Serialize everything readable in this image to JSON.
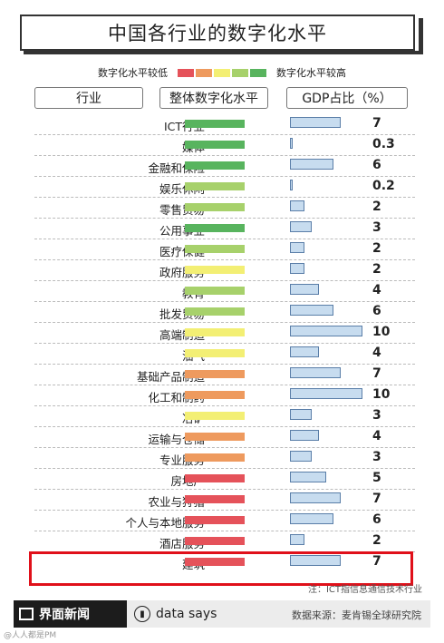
{
  "title": "中国各行业的数字化水平",
  "legend": {
    "low_label": "数字化水平较低",
    "high_label": "数字化水平较高",
    "colors": [
      "#e5525a",
      "#ee9a5e",
      "#f3ef74",
      "#a7d16b",
      "#58b45e"
    ]
  },
  "headers": {
    "industry": "行业",
    "level": "整体数字化水平",
    "gdp": "GDP占比（%）"
  },
  "chart_data": {
    "type": "table",
    "title": "中国各行业的数字化水平",
    "level_scale": [
      "低",
      "较低",
      "中",
      "较高",
      "高"
    ],
    "rows": [
      {
        "industry": "ICT行业",
        "level": 5,
        "gdp": "7"
      },
      {
        "industry": "媒体",
        "level": 5,
        "gdp": "0.3"
      },
      {
        "industry": "金融和保险",
        "level": 5,
        "gdp": "6"
      },
      {
        "industry": "娱乐休闲",
        "level": 4,
        "gdp": "0.2"
      },
      {
        "industry": "零售贸易",
        "level": 4,
        "gdp": "2"
      },
      {
        "industry": "公用事业",
        "level": 5,
        "gdp": "3"
      },
      {
        "industry": "医疗保健",
        "level": 4,
        "gdp": "2"
      },
      {
        "industry": "政府服务",
        "level": 3,
        "gdp": "2"
      },
      {
        "industry": "教育",
        "level": 4,
        "gdp": "4"
      },
      {
        "industry": "批发贸易",
        "level": 4,
        "gdp": "6"
      },
      {
        "industry": "高端制造",
        "level": 3,
        "gdp": "10"
      },
      {
        "industry": "油气",
        "level": 3,
        "gdp": "4"
      },
      {
        "industry": "基础产品制造",
        "level": 2,
        "gdp": "7"
      },
      {
        "industry": "化工和制药",
        "level": 2,
        "gdp": "10"
      },
      {
        "industry": "冶矿",
        "level": 3,
        "gdp": "3"
      },
      {
        "industry": "运输与仓储",
        "level": 2,
        "gdp": "4"
      },
      {
        "industry": "专业服务",
        "level": 2,
        "gdp": "3"
      },
      {
        "industry": "房地产",
        "level": 1,
        "gdp": "5"
      },
      {
        "industry": "农业与狩猎",
        "level": 1,
        "gdp": "7"
      },
      {
        "industry": "个人与本地服务",
        "level": 1,
        "gdp": "6"
      },
      {
        "industry": "酒店服务",
        "level": 1,
        "gdp": "2"
      },
      {
        "industry": "建筑",
        "level": 1,
        "gdp": "7"
      }
    ]
  },
  "note": "注：ICT指信息通信技术行业",
  "footer": {
    "brand": "界面新闻",
    "data_says": "data says",
    "source": "数据来源：麦肯锡全球研究院",
    "watermark": "@人人都是PM"
  }
}
